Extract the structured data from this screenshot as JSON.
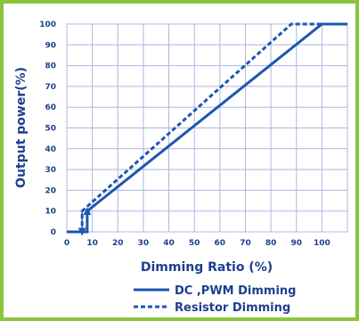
{
  "chart_data": {
    "type": "line",
    "xlabel": "Dimming  Ratio (%)",
    "ylabel": "Output power(%)",
    "xlim": [
      0,
      110
    ],
    "ylim": [
      0,
      100
    ],
    "x_ticks": [
      0,
      10,
      20,
      30,
      40,
      50,
      60,
      70,
      80,
      90,
      100
    ],
    "y_ticks": [
      0,
      10,
      20,
      30,
      40,
      50,
      60,
      70,
      80,
      90,
      100
    ],
    "grid": true,
    "legend_position": "bottom",
    "series": [
      {
        "name": "DC ,PWM Dimming",
        "style": "solid",
        "color": "#1e56b0",
        "x": [
          0,
          8,
          8,
          100,
          110
        ],
        "y": [
          0,
          0,
          10,
          100,
          100
        ]
      },
      {
        "name": "Resistor Dimming",
        "style": "dashed",
        "color": "#1e56b0",
        "x": [
          0,
          6,
          6,
          88,
          110
        ],
        "y": [
          0,
          0,
          10,
          100,
          100
        ]
      }
    ],
    "annotations": [
      {
        "type": "arrow-up",
        "x": 8,
        "y_from": 0,
        "y_to": 10
      },
      {
        "type": "arrow-down",
        "x": 6,
        "y_from": 10,
        "y_to": 0
      }
    ]
  }
}
